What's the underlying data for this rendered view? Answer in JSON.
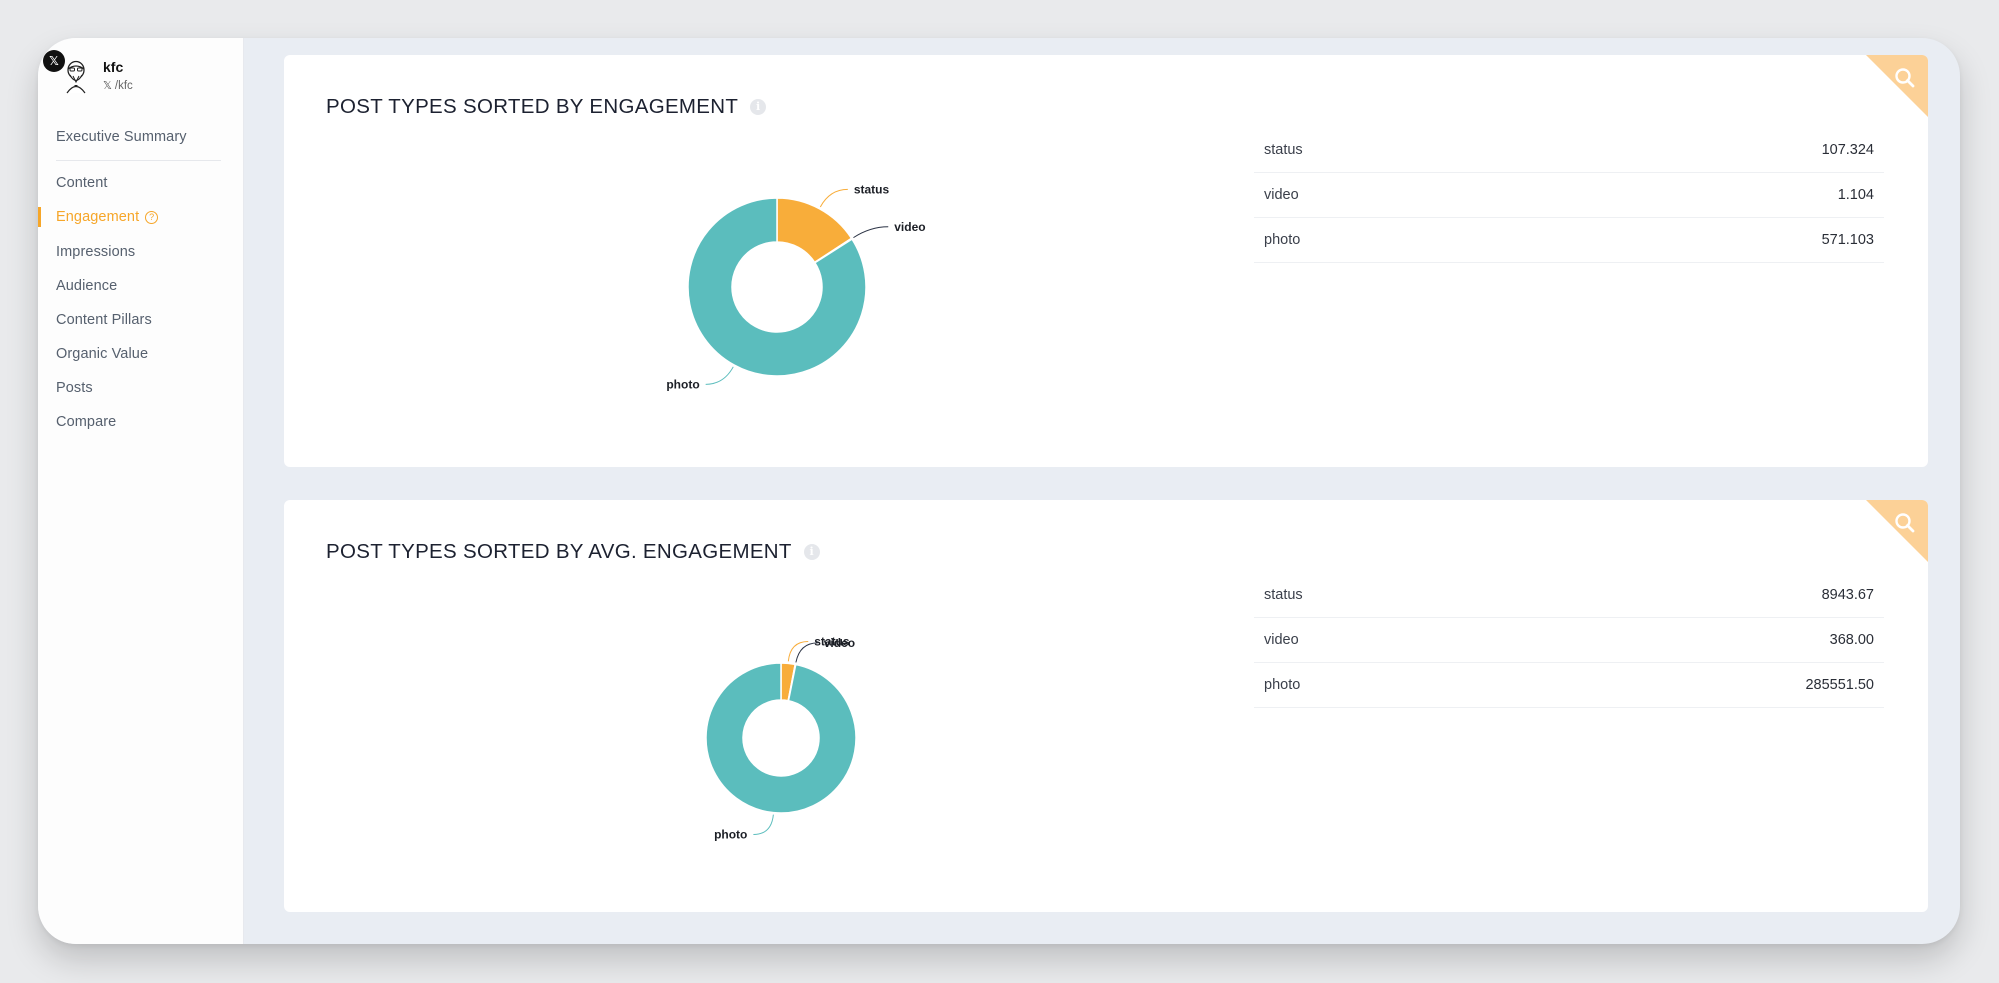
{
  "profile": {
    "platform_icon": "x-logo-icon",
    "name": "kfc",
    "handle": "/kfc"
  },
  "nav": {
    "items": [
      {
        "label": "Executive Summary"
      },
      {
        "label": "Content"
      },
      {
        "label": "Engagement",
        "active": true
      },
      {
        "label": "Impressions"
      },
      {
        "label": "Audience"
      },
      {
        "label": "Content Pillars"
      },
      {
        "label": "Organic Value"
      },
      {
        "label": "Posts"
      },
      {
        "label": "Compare"
      }
    ],
    "active_help_icon": "question-circle-icon"
  },
  "colors": {
    "accent": "#f6a629",
    "status": "#f8ad3a",
    "video": "#2a3244",
    "photo": "#5bbdbd",
    "corner": "#fcd197"
  },
  "cards": [
    {
      "title": "POST TYPES SORTED BY ENGAGEMENT",
      "rows": [
        {
          "label": "status",
          "value": "107.324"
        },
        {
          "label": "video",
          "value": "1.104"
        },
        {
          "label": "photo",
          "value": "571.103"
        }
      ]
    },
    {
      "title": "POST TYPES SORTED BY AVG. ENGAGEMENT",
      "rows": [
        {
          "label": "status",
          "value": "8943.67"
        },
        {
          "label": "video",
          "value": "368.00"
        },
        {
          "label": "photo",
          "value": "285551.50"
        }
      ]
    }
  ],
  "chart_data": [
    {
      "type": "pie",
      "title": "POST TYPES SORTED BY ENGAGEMENT",
      "categories": [
        "status",
        "video",
        "photo"
      ],
      "values": [
        107.324,
        1.104,
        571.103
      ]
    },
    {
      "type": "pie",
      "title": "POST TYPES SORTED BY AVG. ENGAGEMENT",
      "categories": [
        "status",
        "video",
        "photo"
      ],
      "values": [
        8943.67,
        368.0,
        285551.5
      ]
    }
  ]
}
